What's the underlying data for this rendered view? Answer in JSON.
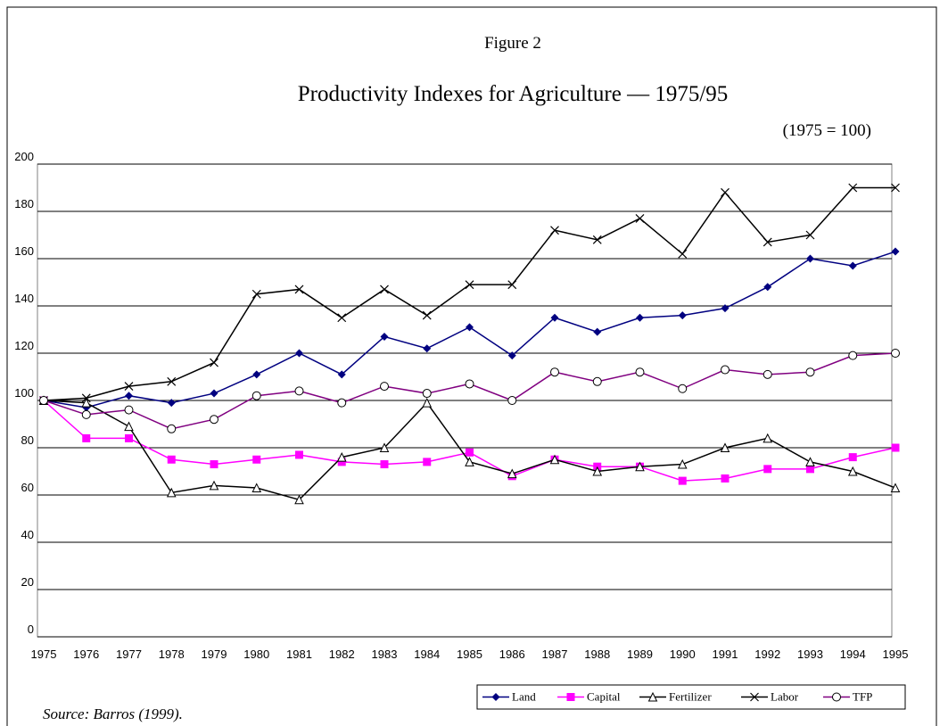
{
  "chart_data": {
    "type": "line",
    "figure_label": "Figure 2",
    "title": "Productivity Indexes for Agriculture — 1975/95",
    "subtitle": "(1975 = 100)",
    "source": "Source: Barros (1999).",
    "categories": [
      "1975",
      "1976",
      "1977",
      "1978",
      "1979",
      "1980",
      "1981",
      "1982",
      "1983",
      "1984",
      "1985",
      "1986",
      "1987",
      "1988",
      "1989",
      "1990",
      "1991",
      "1992",
      "1993",
      "1994",
      "1995"
    ],
    "series": [
      {
        "name": "Land",
        "color": "#000080",
        "marker": "diamond",
        "values": [
          100,
          97,
          102,
          99,
          103,
          111,
          120,
          111,
          127,
          122,
          131,
          119,
          135,
          129,
          135,
          136,
          139,
          148,
          160,
          157,
          163
        ]
      },
      {
        "name": "Capital",
        "color": "#ff00ff",
        "marker": "square",
        "values": [
          100,
          84,
          84,
          75,
          73,
          75,
          77,
          74,
          73,
          74,
          78,
          68,
          75,
          72,
          72,
          66,
          67,
          71,
          71,
          76,
          80
        ]
      },
      {
        "name": "Fertilizer",
        "color": "#000000",
        "marker": "triangle",
        "values": [
          100,
          99,
          89,
          61,
          64,
          63,
          58,
          76,
          80,
          99,
          74,
          69,
          75,
          70,
          72,
          73,
          80,
          84,
          74,
          70,
          63
        ]
      },
      {
        "name": "Labor",
        "color": "#000000",
        "marker": "cross",
        "values": [
          100,
          101,
          106,
          108,
          116,
          145,
          147,
          135,
          147,
          136,
          149,
          149,
          172,
          168,
          177,
          162,
          188,
          167,
          170,
          190,
          190
        ]
      },
      {
        "name": "TFP",
        "color": "#800080",
        "marker": "circle",
        "values": [
          100,
          94,
          96,
          88,
          92,
          102,
          104,
          99,
          106,
          103,
          107,
          100,
          112,
          108,
          112,
          105,
          113,
          111,
          112,
          119,
          120
        ]
      }
    ],
    "ylim": [
      0,
      200
    ],
    "yticks": [
      0,
      20,
      40,
      60,
      80,
      100,
      120,
      140,
      160,
      180,
      200
    ],
    "grid": true,
    "legend": "bottom-right"
  }
}
